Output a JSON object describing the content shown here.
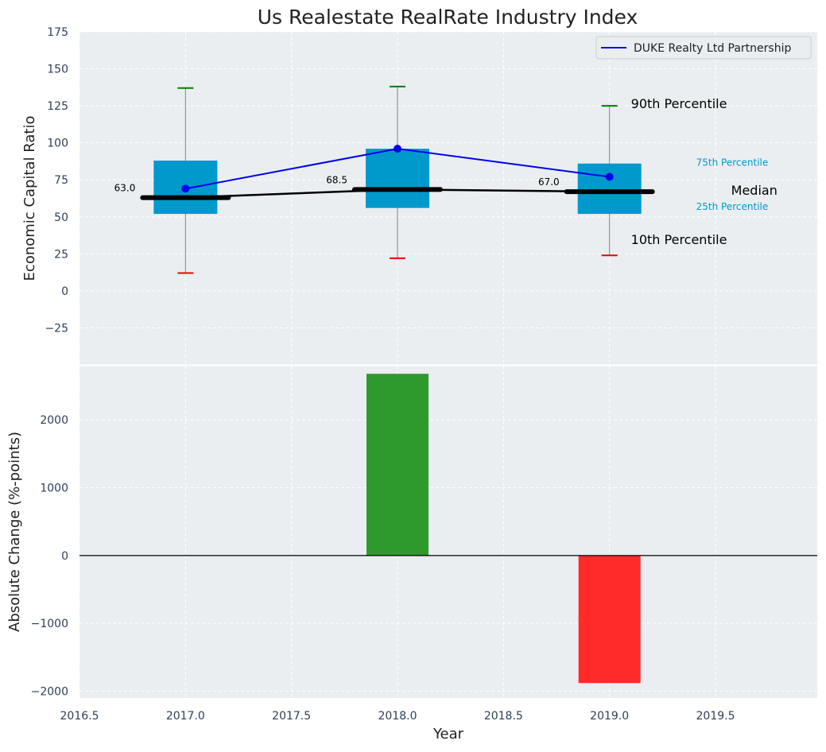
{
  "chart_data": [
    {
      "type": "box",
      "title": "Us Realestate RealRate Industry Index",
      "ylabel": "Economic Capital Ratio",
      "xlim": [
        2016.5,
        2019.98
      ],
      "ylim": [
        -50,
        175
      ],
      "yticks": [
        -25,
        0,
        25,
        50,
        75,
        100,
        125,
        150,
        175
      ],
      "grid": true,
      "legend": {
        "position": "top-right",
        "entries": [
          "DUKE Realty Ltd Partnership"
        ]
      },
      "boxes": [
        {
          "x": 2017,
          "p10": 12,
          "p25": 52,
          "median": 63.0,
          "median_label": "63.0",
          "p75": 88,
          "p90": 137
        },
        {
          "x": 2018,
          "p10": 22,
          "p25": 56,
          "median": 68.5,
          "median_label": "68.5",
          "p75": 96,
          "p90": 138
        },
        {
          "x": 2019,
          "p10": 24,
          "p25": 52,
          "median": 67.0,
          "median_label": "67.0",
          "p75": 86,
          "p90": 125
        }
      ],
      "series": [
        {
          "name": "DUKE Realty Ltd Partnership",
          "x": [
            2017,
            2018,
            2019
          ],
          "values": [
            69,
            96,
            77
          ],
          "color": "#0000ee"
        }
      ],
      "annotations": {
        "p90": "90th Percentile",
        "p75": "75th Percentile",
        "median": "Median",
        "p25": "25th Percentile",
        "p10": "10th Percentile"
      },
      "colors": {
        "box": "#0099cc",
        "median": "#000000",
        "p90_cap": "#008000",
        "p10_cap": "#ee0000",
        "whisker": "#808080",
        "background": "#eaeef0"
      }
    },
    {
      "type": "bar",
      "xlabel": "Year",
      "ylabel": "Absolute Change (%-points)",
      "xlim": [
        2016.5,
        2019.98
      ],
      "ylim": [
        -2100,
        2800
      ],
      "xticks": [
        "2016.5",
        "2017.0",
        "2017.5",
        "2018.0",
        "2018.5",
        "2019.0",
        "2019.5"
      ],
      "yticks": [
        -2000,
        -1000,
        0,
        1000,
        2000
      ],
      "x": [
        2018,
        2019
      ],
      "values": [
        2680,
        -1880
      ],
      "bar_colors": [
        "#2e9a2e",
        "#ff2a2a"
      ],
      "grid": true
    }
  ]
}
